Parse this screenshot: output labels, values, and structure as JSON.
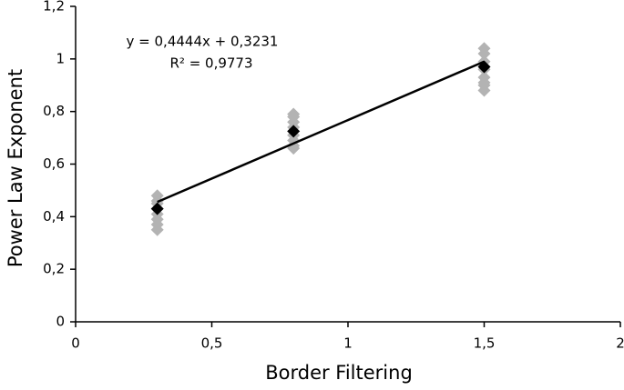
{
  "chart_data": {
    "type": "scatter",
    "xlabel": "Border Filtering",
    "ylabel": "Power Law Exponent",
    "annotations": [
      "y = 0,4444x + 0,3231",
      "R² = 0,9773"
    ],
    "xlim": [
      0,
      2
    ],
    "xticks": [
      0,
      {
        "value": 0.5,
        "label": "0,5"
      },
      1,
      {
        "value": 1.5,
        "label": "1,5"
      },
      2
    ],
    "ylim": [
      0,
      1.2
    ],
    "yticks": [
      0,
      {
        "value": 0.2,
        "label": "0,2"
      },
      {
        "value": 0.4,
        "label": "0,4"
      },
      {
        "value": 0.6,
        "label": "0,6"
      },
      {
        "value": 0.8,
        "label": "0,8"
      },
      1,
      {
        "value": 1.2,
        "label": "1,2"
      }
    ],
    "series": [
      {
        "color": "#b3b3b3",
        "marker": "diamond",
        "x": [
          0.3,
          0.3,
          0.3,
          0.3,
          0.3,
          0.3,
          0.3,
          0.3,
          0.8,
          0.8,
          0.8,
          0.8,
          0.8,
          0.8,
          0.8,
          0.8,
          1.5,
          1.5,
          1.5,
          1.5,
          1.5,
          1.5,
          1.5,
          1.5
        ],
        "values": [
          0.48,
          0.46,
          0.45,
          0.43,
          0.41,
          0.39,
          0.37,
          0.35,
          0.79,
          0.78,
          0.76,
          0.74,
          0.71,
          0.69,
          0.67,
          0.66,
          1.04,
          1.02,
          0.99,
          0.96,
          0.93,
          0.91,
          0.9,
          0.88
        ]
      },
      {
        "color": "#000000",
        "marker": "diamond",
        "x": [
          0.3,
          0.8,
          1.5
        ],
        "values": [
          0.43,
          0.725,
          0.97
        ]
      },
      {
        "color": "#000000",
        "marker": "line",
        "x": [
          0.3,
          1.5
        ],
        "values": [
          0.456,
          0.99
        ]
      }
    ]
  }
}
